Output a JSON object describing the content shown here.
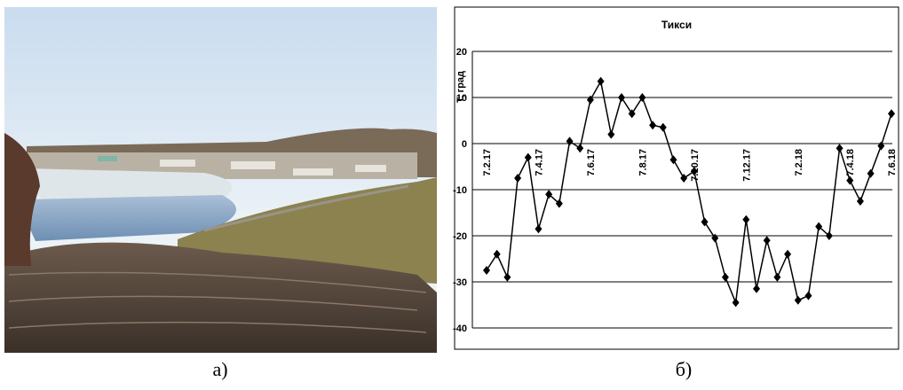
{
  "figure": {
    "captions": [
      "а)",
      "б)"
    ]
  },
  "chart_data": {
    "type": "line",
    "title": "Тикси",
    "y_label": "T, град",
    "categories": [
      "7.2.17",
      null,
      null,
      null,
      null,
      "7.4.17",
      null,
      null,
      null,
      null,
      "7.6.17",
      null,
      null,
      null,
      null,
      "7.8.17",
      null,
      null,
      null,
      null,
      "7.10.17",
      null,
      null,
      null,
      null,
      "7.12.17",
      null,
      null,
      null,
      null,
      "7.2.18",
      null,
      null,
      null,
      null,
      "7.4.18",
      null,
      null,
      null,
      "7.6.18"
    ],
    "series": [
      {
        "color": "#000000",
        "values": [
          -27.5,
          -24,
          -29,
          -7.5,
          -3,
          -18.5,
          -11,
          -13,
          0.5,
          -1,
          9.5,
          13.5,
          2,
          10,
          6.5,
          10,
          4,
          3.5,
          -3.5,
          -7.5,
          -6,
          -17,
          -20.5,
          -29,
          -34.5,
          -16.5,
          -31.5,
          -21,
          -29,
          -24,
          -34,
          -33,
          -18,
          -20,
          -1,
          -8,
          -12.5,
          -6.5,
          -0.5,
          6.5
        ]
      }
    ],
    "ylim": [
      -40,
      20
    ],
    "yticks": [
      -40,
      -30,
      -20,
      -10,
      0,
      10,
      20
    ],
    "grid": true
  }
}
